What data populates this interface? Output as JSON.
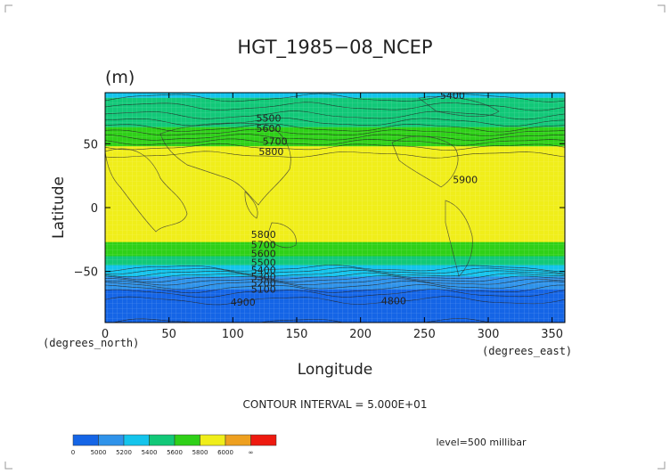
{
  "chart_data": {
    "type": "heatmap",
    "title": "HGT_1985−08_NCEP",
    "units": "(m)",
    "xlabel": "Longitude",
    "ylabel": "Latitude",
    "x_unit_note": "(degrees_east)",
    "y_unit_note": "(degrees_north)",
    "xlim": [
      0,
      360
    ],
    "ylim": [
      -90,
      90
    ],
    "x_ticks": [
      0,
      50,
      100,
      150,
      200,
      250,
      300,
      350
    ],
    "y_ticks": [
      50,
      0,
      -50
    ],
    "y_tick_labels": [
      "50",
      "0",
      "−50"
    ],
    "contour_interval_text": "CONTOUR INTERVAL = 5.000E+01",
    "level_text": "level=500 millibar",
    "grid": true,
    "colorbar": {
      "labels": [
        "0",
        "5000",
        "5200",
        "5400",
        "5600",
        "5800",
        "6000",
        "∞"
      ],
      "bands": [
        {
          "min": 0,
          "max": 5000,
          "color": "#1565e6"
        },
        {
          "min": 5000,
          "max": 5200,
          "color": "#2f93ea"
        },
        {
          "min": 5200,
          "max": 5400,
          "color": "#14c4ec"
        },
        {
          "min": 5400,
          "max": 5600,
          "color": "#12c878"
        },
        {
          "min": 5600,
          "max": 5800,
          "color": "#2fd018"
        },
        {
          "min": 5800,
          "max": 6000,
          "color": "#f0ee1a"
        },
        {
          "min": 6000,
          "max": 6200,
          "color": "#eea020"
        },
        {
          "min": 6200,
          "max": 1000000000.0,
          "color": "#ee1a10"
        }
      ]
    },
    "zonal_profile": [
      {
        "lat": 90,
        "value": 5360
      },
      {
        "lat": 84,
        "value": 5420
      },
      {
        "lat": 76,
        "value": 5470
      },
      {
        "lat": 70,
        "value": 5520
      },
      {
        "lat": 64,
        "value": 5580
      },
      {
        "lat": 58,
        "value": 5660
      },
      {
        "lat": 52,
        "value": 5740
      },
      {
        "lat": 46,
        "value": 5820
      },
      {
        "lat": 40,
        "value": 5860
      },
      {
        "lat": 30,
        "value": 5880
      },
      {
        "lat": 0,
        "value": 5880
      },
      {
        "lat": -20,
        "value": 5860
      },
      {
        "lat": -26,
        "value": 5810
      },
      {
        "lat": -32,
        "value": 5740
      },
      {
        "lat": -37,
        "value": 5630
      },
      {
        "lat": -41,
        "value": 5520
      },
      {
        "lat": -45,
        "value": 5410
      },
      {
        "lat": -50,
        "value": 5290
      },
      {
        "lat": -55,
        "value": 5170
      },
      {
        "lat": -60,
        "value": 5060
      },
      {
        "lat": -66,
        "value": 4960
      },
      {
        "lat": -75,
        "value": 4880
      },
      {
        "lat": -90,
        "value": 4850
      }
    ],
    "contour_labels": [
      {
        "text": "5400",
        "lon": 272,
        "lat": 88
      },
      {
        "text": "5500",
        "lon": 128,
        "lat": 70
      },
      {
        "text": "5600",
        "lon": 128,
        "lat": 62
      },
      {
        "text": "5700",
        "lon": 133,
        "lat": 52
      },
      {
        "text": "5800",
        "lon": 130,
        "lat": 44
      },
      {
        "text": "5900",
        "lon": 282,
        "lat": 22
      },
      {
        "text": "5800",
        "lon": 124,
        "lat": -21
      },
      {
        "text": "5700",
        "lon": 124,
        "lat": -29
      },
      {
        "text": "5600",
        "lon": 124,
        "lat": -36
      },
      {
        "text": "5500",
        "lon": 124,
        "lat": -43
      },
      {
        "text": "5400",
        "lon": 124,
        "lat": -49
      },
      {
        "text": "5300",
        "lon": 124,
        "lat": -54
      },
      {
        "text": "5200",
        "lon": 124,
        "lat": -59
      },
      {
        "text": "5100",
        "lon": 124,
        "lat": -64
      },
      {
        "text": "4900",
        "lon": 108,
        "lat": -74
      },
      {
        "text": "4800",
        "lon": 226,
        "lat": -73
      }
    ]
  }
}
